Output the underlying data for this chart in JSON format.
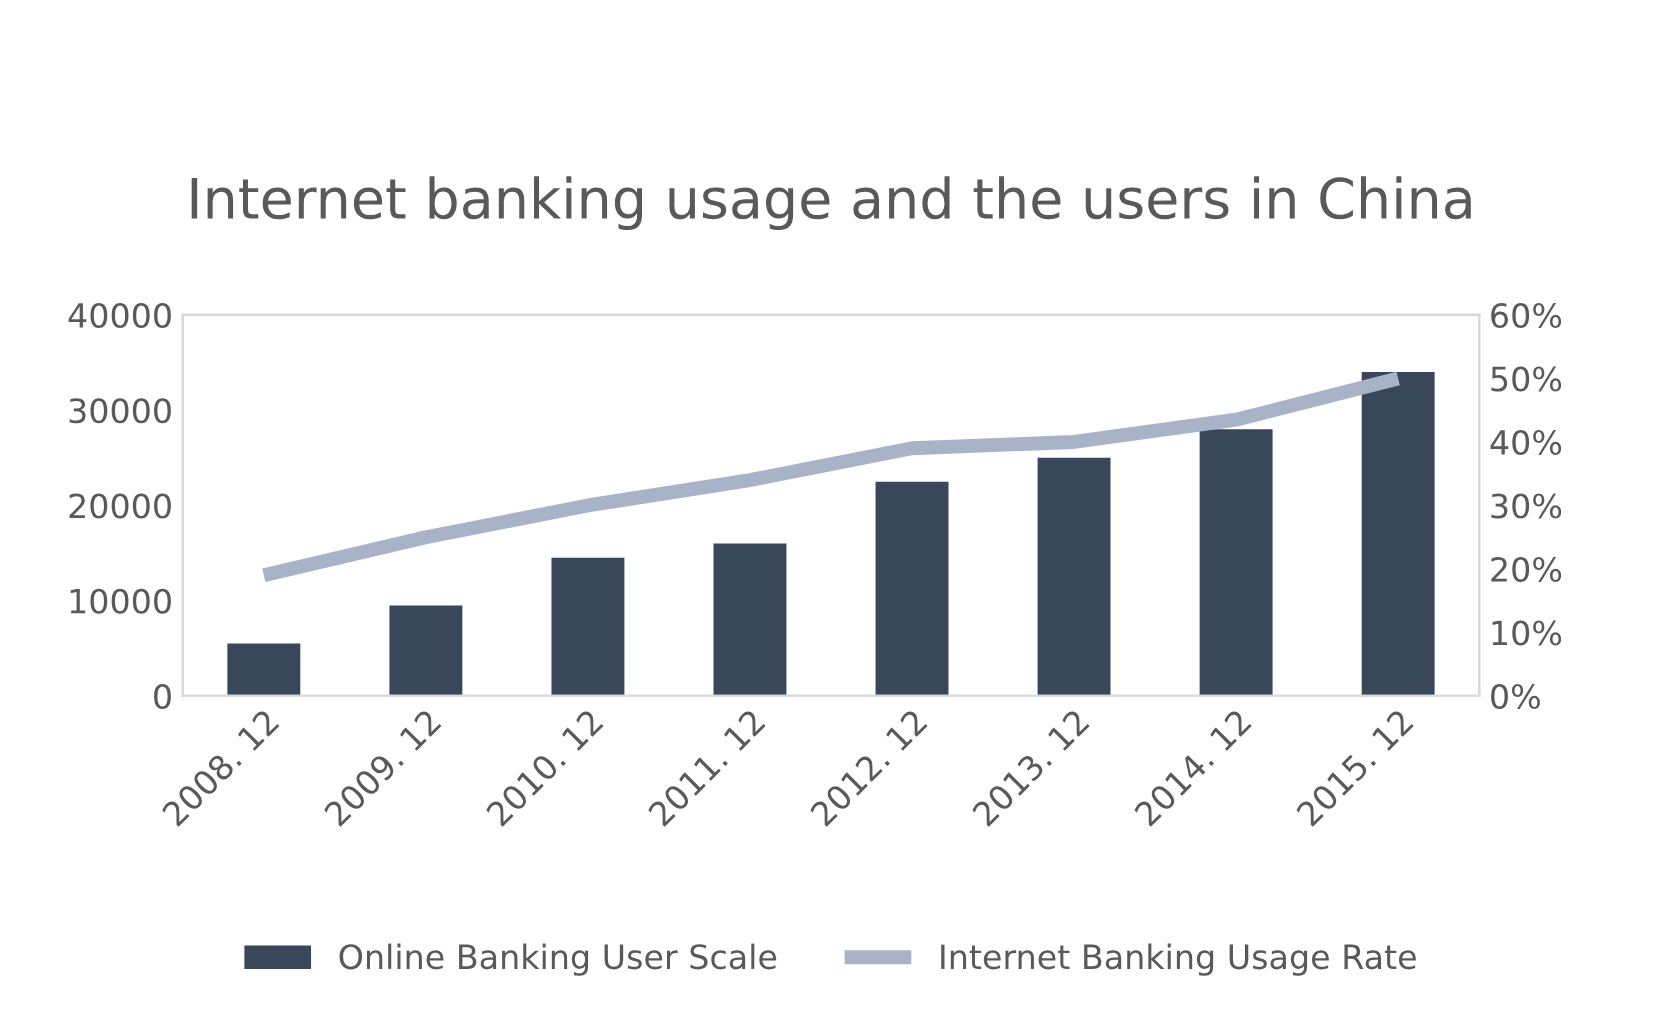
{
  "chart_data": {
    "type": "bar",
    "title": "Internet banking usage and the users in China",
    "categories": [
      "2008. 12",
      "2009. 12",
      "2010. 12",
      "2011. 12",
      "2012. 12",
      "2013. 12",
      "2014. 12",
      "2015. 12"
    ],
    "series": [
      {
        "name": "Online Banking User Scale",
        "color": "#38475a",
        "values": [
          5500,
          9500,
          14500,
          16000,
          22500,
          25000,
          28000,
          34000
        ]
      },
      {
        "name": "Internet Banking Usage Rate",
        "type": "line",
        "axis": "y2",
        "color": "#a8b3c8",
        "values": [
          19,
          25,
          30,
          34,
          39,
          40,
          43.5,
          50
        ]
      }
    ],
    "ylim": [
      0,
      40000
    ],
    "yticks": [
      0,
      10000,
      20000,
      30000,
      40000
    ],
    "y2lim": [
      0,
      60
    ],
    "y2ticks": [
      {
        "value": 0,
        "label": "0%"
      },
      {
        "value": 10,
        "label": "10%"
      },
      {
        "value": 20,
        "label": "20%"
      },
      {
        "value": 30,
        "label": "30%"
      },
      {
        "value": 40,
        "label": "40%"
      },
      {
        "value": 50,
        "label": "50%"
      },
      {
        "value": 60,
        "label": "60%"
      }
    ],
    "legend": "bottom"
  }
}
